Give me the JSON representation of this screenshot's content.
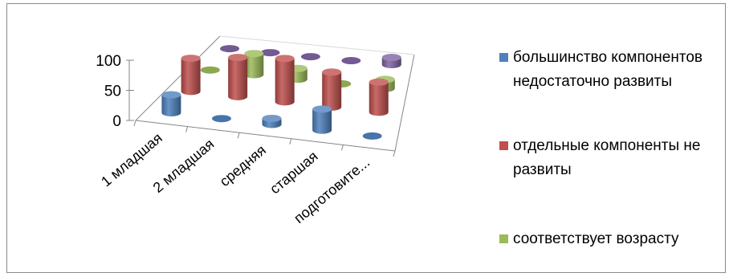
{
  "chart_data": {
    "type": "bar",
    "style": "3d-cylinder",
    "categories": [
      "1 младшая",
      "2 младшая",
      "средняя",
      "старшая",
      "подготовите..."
    ],
    "yticks": [
      "0",
      "50",
      "100"
    ],
    "ylim": [
      0,
      100
    ],
    "series": [
      {
        "name": "большинство компонентов недостаточно развиты",
        "color": "#4f81bd",
        "values": [
          30,
          0,
          10,
          35,
          0
        ]
      },
      {
        "name": "отдельные компоненты не развиты",
        "color": "#c0504d",
        "values": [
          55,
          65,
          72,
          58,
          50
        ]
      },
      {
        "name": "соответствует возрасту",
        "color": "#9bbb59",
        "values": [
          0,
          35,
          18,
          0,
          15
        ]
      },
      {
        "name": "",
        "color": "#8064a2",
        "values": [
          0,
          0,
          0,
          0,
          12
        ]
      }
    ],
    "legend": {
      "position": "right"
    },
    "grid": false
  }
}
